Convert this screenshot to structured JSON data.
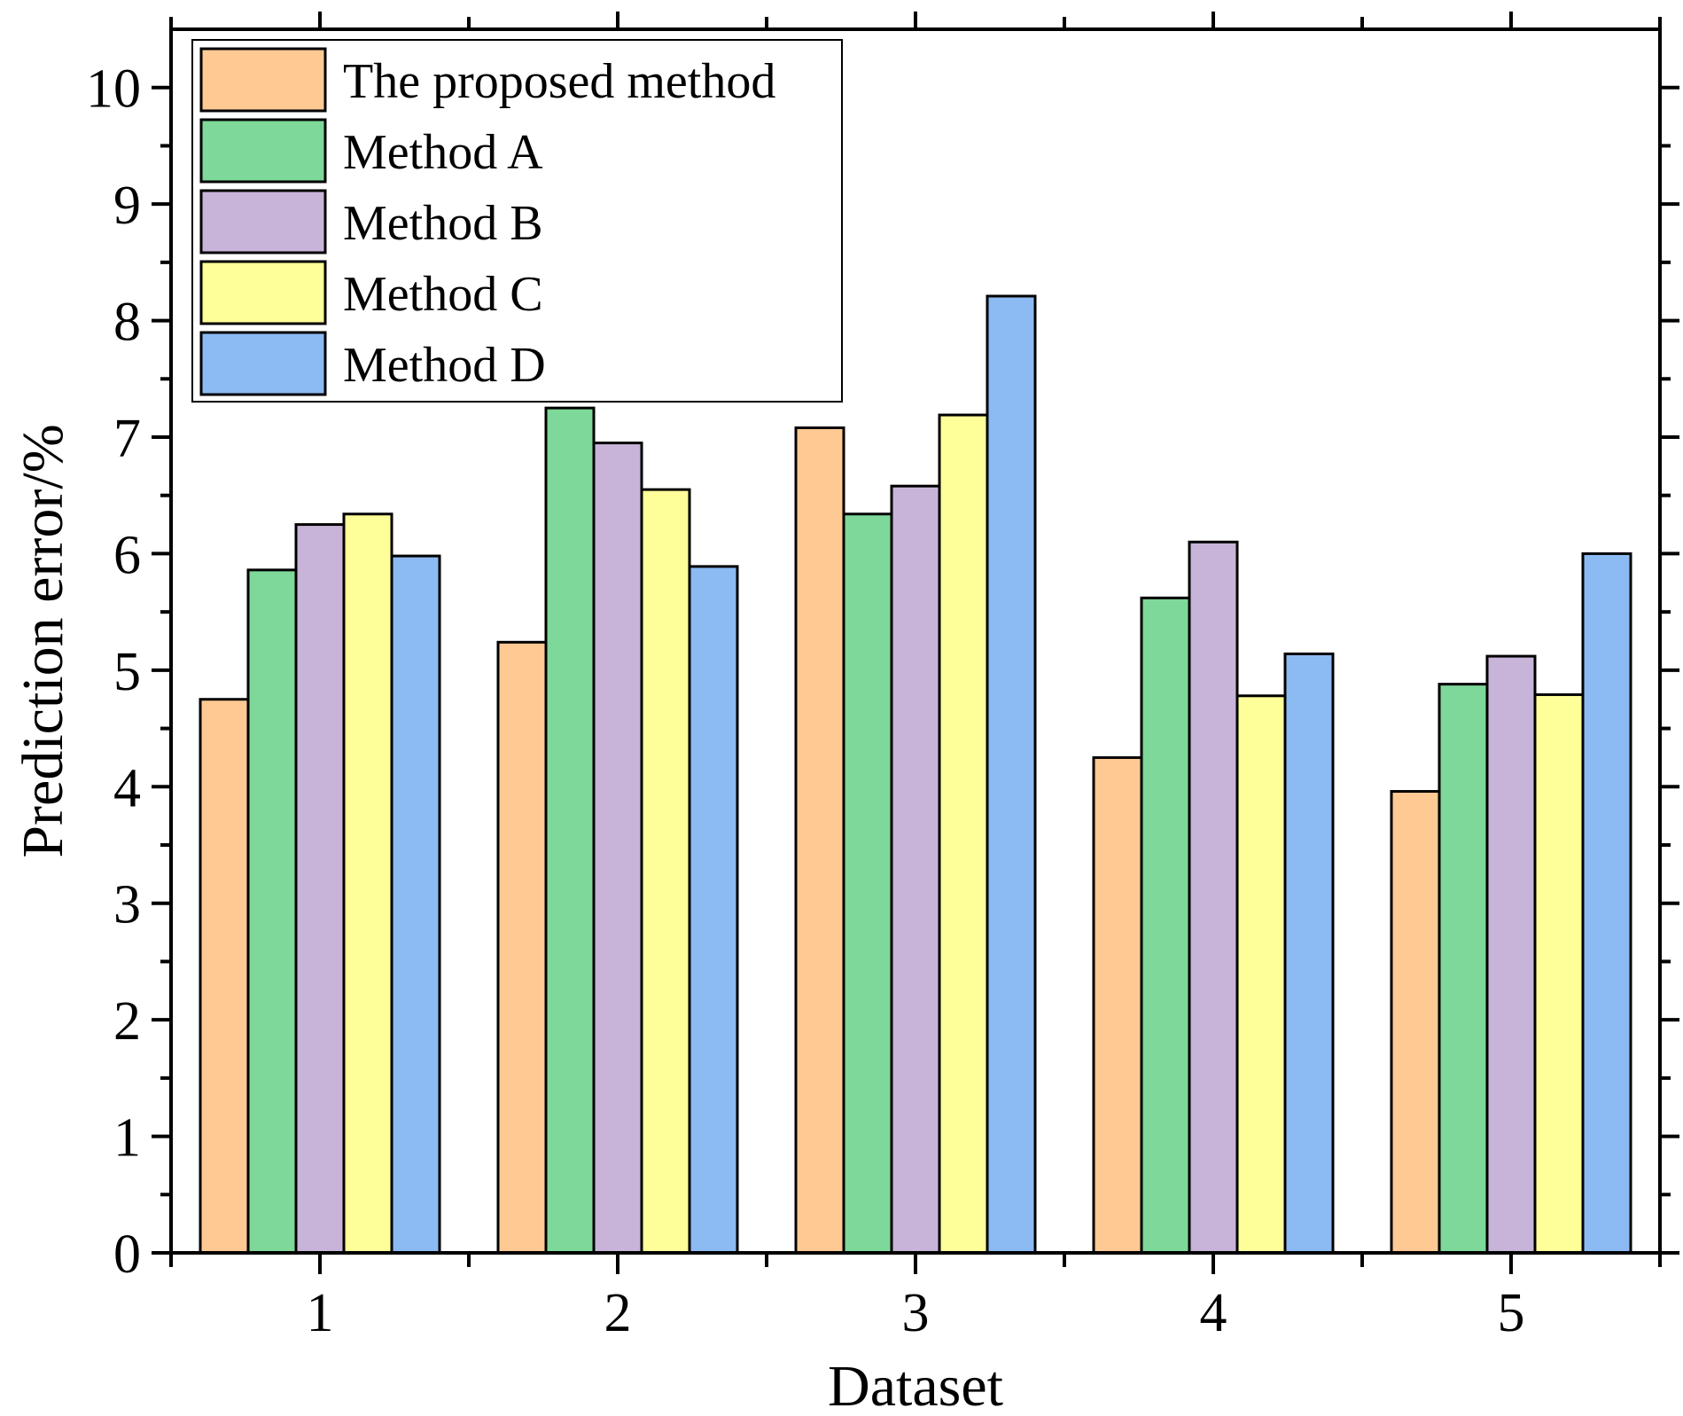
{
  "chart_data": {
    "type": "bar",
    "title": "",
    "xlabel": "Dataset",
    "ylabel": "Prediction error/%",
    "categories": [
      "1",
      "2",
      "3",
      "4",
      "5"
    ],
    "ylim": [
      0,
      10.5
    ],
    "yticks": [
      "0",
      "1",
      "2",
      "3",
      "4",
      "5",
      "6",
      "7",
      "8",
      "9",
      "10"
    ],
    "legend_position": "top-left",
    "grid": false,
    "series": [
      {
        "name": "The proposed method",
        "color": "#FFC994",
        "values": [
          4.75,
          5.24,
          7.08,
          4.25,
          3.96
        ]
      },
      {
        "name": "Method A",
        "color": "#7ED899",
        "values": [
          5.86,
          7.25,
          6.34,
          5.62,
          4.88
        ]
      },
      {
        "name": "Method B",
        "color": "#C8B4D8",
        "values": [
          6.25,
          6.95,
          6.58,
          6.1,
          5.12
        ]
      },
      {
        "name": "Method C",
        "color": "#FFFF99",
        "values": [
          6.34,
          6.55,
          7.19,
          4.78,
          4.79
        ]
      },
      {
        "name": "Method D",
        "color": "#8CBAF2",
        "values": [
          5.98,
          5.89,
          8.21,
          5.14,
          6.0
        ]
      }
    ]
  }
}
